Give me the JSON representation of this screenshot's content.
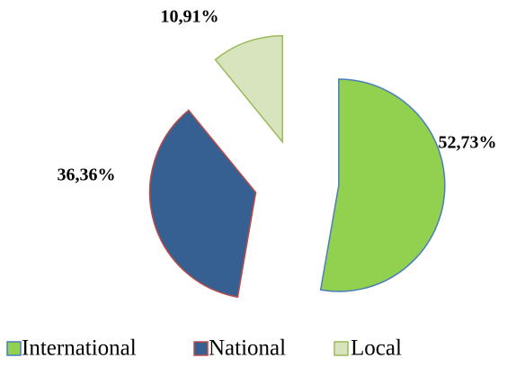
{
  "chart_data": {
    "type": "pie",
    "categories": [
      "International",
      "National",
      "Local"
    ],
    "values": [
      52.73,
      36.36,
      10.91
    ],
    "value_labels": [
      "52,73%",
      "36,36%",
      "10,91%"
    ],
    "colors": [
      "#92d050",
      "#376092",
      "#d7e4bd"
    ],
    "legend": "bottom"
  }
}
